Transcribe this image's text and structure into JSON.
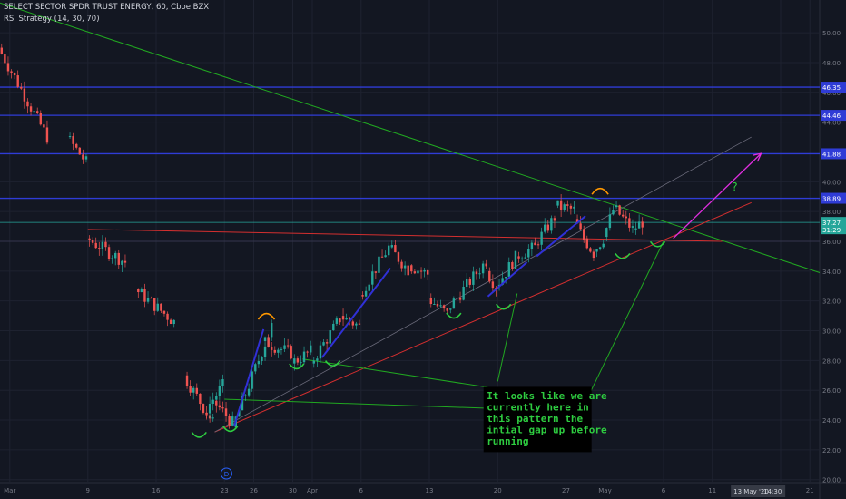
{
  "header": {
    "title": "SELECT SECTOR SPDR TRUST ENERGY, 60, Cboe BZX",
    "indicator": "RSI Strategy (14, 30, 70)"
  },
  "chart_data": {
    "type": "candlestick",
    "y_range": [
      19.8,
      52.2
    ],
    "price_ticks": [
      "20.00",
      "22.00",
      "24.00",
      "26.00",
      "28.00",
      "30.00",
      "32.00",
      "34.00",
      "36.00",
      "38.00",
      "40.00",
      "42.00",
      "44.00",
      "46.00",
      "48.00",
      "50.00"
    ],
    "x_ticks": [
      "Mar",
      "9",
      "16",
      "23",
      "26",
      "30",
      "Apr",
      "6",
      "13",
      "20",
      "27",
      "May",
      "6",
      "11",
      "18",
      "21"
    ],
    "x_tick_days": [
      1,
      9,
      16,
      23,
      26,
      30,
      32,
      37,
      44,
      51,
      58,
      62,
      68,
      73,
      80,
      83
    ],
    "x_range": [
      0,
      84
    ],
    "horizontal_levels": [
      {
        "price": 46.35,
        "label": "46.35"
      },
      {
        "price": 44.46,
        "label": "44.46"
      },
      {
        "price": 41.88,
        "label": "41.88"
      },
      {
        "price": 38.89,
        "label": "38.89"
      }
    ],
    "current_price": {
      "label": "37.27",
      "price": 37.27,
      "timer": "31:29",
      "color": "#26a69a"
    },
    "time_marker": {
      "date": "13 May '20",
      "time": "14:30"
    },
    "annotation": {
      "text": [
        "It looks like we are",
        "currently here in",
        "this pattern the",
        "intial gap up before",
        "running"
      ]
    },
    "question_mark": "?",
    "event_badge": "D",
    "colors": {
      "background": "#131722",
      "up": "#26a69a",
      "down": "#ef5350",
      "level_line": "#2f3cd6",
      "trendline_green": "#21a821",
      "trendline_red": "#d32f2f",
      "arrow_blue": "#3030d6",
      "arrow_magenta": "#e02ee0",
      "arc_orange": "#ff9800",
      "arc_green": "#2ecc40",
      "annotation_text": "#2ecc40"
    },
    "segments": [
      [
        0,
        49.0,
        43.0,
        5
      ],
      [
        7,
        43.0,
        41.3,
        2
      ],
      [
        9,
        36.2,
        34.6,
        4
      ],
      [
        14,
        32.8,
        30.6,
        4
      ],
      [
        19,
        27.0,
        23.8,
        3
      ],
      [
        21,
        24.5,
        26.3,
        2
      ],
      [
        22,
        25.3,
        23.8,
        2
      ],
      [
        24,
        23.5,
        30.3,
        4
      ],
      [
        27,
        29.3,
        28.5,
        3
      ],
      [
        30,
        27.8,
        28.6,
        2
      ],
      [
        32,
        27.8,
        30.8,
        3
      ],
      [
        35,
        31.0,
        30.3,
        2
      ],
      [
        37,
        32.4,
        35.6,
        3
      ],
      [
        40,
        35.6,
        34.1,
        2
      ],
      [
        42,
        34.4,
        33.8,
        2
      ],
      [
        44,
        32.2,
        31.1,
        2
      ],
      [
        46,
        31.4,
        34.7,
        4
      ],
      [
        50,
        34.0,
        33.0,
        1
      ],
      [
        51,
        33.0,
        34.9,
        2
      ],
      [
        53,
        35.0,
        35.6,
        2
      ],
      [
        55,
        35.8,
        37.6,
        2
      ],
      [
        57,
        38.4,
        38.1,
        2
      ],
      [
        59,
        37.5,
        36.1,
        1
      ],
      [
        60,
        36.2,
        35.2,
        1
      ],
      [
        61,
        35.3,
        36.2,
        1
      ],
      [
        62,
        36.3,
        38.1,
        1
      ],
      [
        63,
        38.3,
        36.8,
        2
      ],
      [
        65,
        36.8,
        37.3,
        1
      ]
    ]
  }
}
